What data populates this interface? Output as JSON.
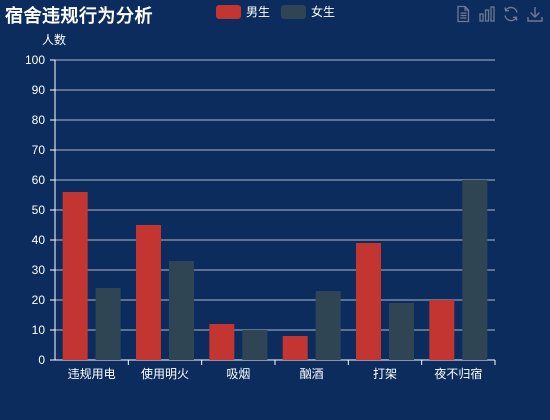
{
  "title": "宿舍违规行为分析",
  "legend": [
    {
      "name": "男生",
      "color": "#c23531"
    },
    {
      "name": "女生",
      "color": "#2f4554"
    }
  ],
  "toolbox": {
    "icons": [
      "data-view-icon",
      "bar-chart-icon",
      "refresh-icon",
      "download-icon"
    ],
    "icon_color": "#6e7b8f"
  },
  "chart_data": {
    "type": "bar",
    "title": "宿舍违规行为分析",
    "categories": [
      "违规用电",
      "使用明火",
      "吸烟",
      "酗酒",
      "打架",
      "夜不归宿"
    ],
    "series": [
      {
        "name": "男生",
        "values": [
          56,
          45,
          12,
          8,
          39,
          20
        ],
        "color": "#c23531"
      },
      {
        "name": "女生",
        "values": [
          24,
          33,
          10,
          23,
          19,
          60
        ],
        "color": "#2f4554"
      }
    ],
    "ylabel": "人数",
    "xlabel": "",
    "ylim": [
      0,
      100
    ],
    "yticks": [
      0,
      10,
      20,
      30,
      40,
      50,
      60,
      70,
      80,
      90,
      100
    ],
    "grid": true,
    "legend_position": "top-center"
  }
}
